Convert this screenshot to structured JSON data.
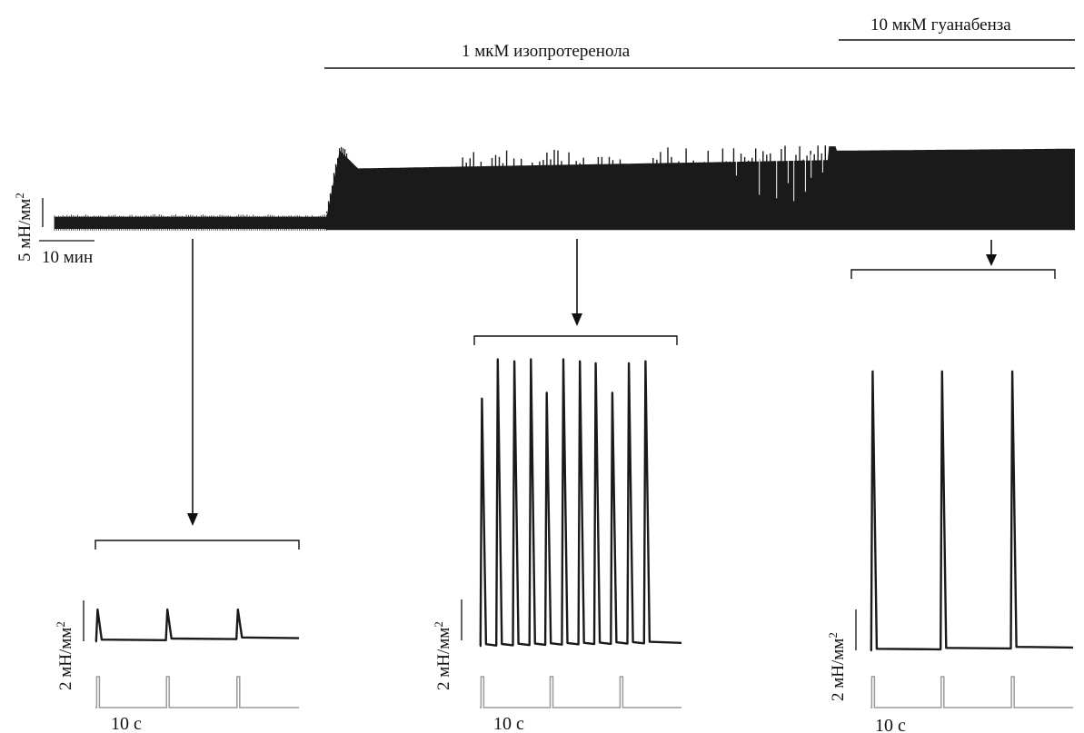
{
  "labels": {
    "drug_iso": "1 мкМ изопротеренола",
    "drug_guan": "10 мкМ гуанабенза",
    "overview_force": "5 мН/мм",
    "overview_time": "10 мин",
    "panel_force": "2 мН/мм",
    "panel_time": "10 с",
    "squared": "2"
  },
  "chart_data": {
    "type": "line",
    "overview": {
      "description_units": "force mN/mm^2 vs time min",
      "scale_bar": {
        "force": 5,
        "force_unit": "мН/мм2",
        "time": 10,
        "time_unit": "мин"
      },
      "segments": [
        {
          "phase": "baseline",
          "t_start": 0,
          "t_end": 52,
          "peak": 2.1,
          "trough": 0.0
        },
        {
          "phase": "isoproterenol",
          "label": "1 мкМ изопротеренола",
          "t_start": 52,
          "t_end": 160,
          "onset_peak": 13.5,
          "plateau_peak": 10.4,
          "late_peak": 13.0,
          "trough": -0.2
        },
        {
          "phase": "guanabenz",
          "label": "10 мкМ гуанабенза",
          "t_start": 148,
          "t_end": 195,
          "peak": 13.8,
          "trough": 0.0
        }
      ]
    },
    "panels": [
      {
        "name": "baseline",
        "duration_s": 28,
        "force_scale": 2,
        "peaks_t": [
          0.3,
          9.9,
          19.6
        ],
        "peak_heights": [
          1.55,
          1.55,
          1.55
        ],
        "baseline": 0.0,
        "stimuli_t": [
          0.3,
          9.9,
          19.6
        ]
      },
      {
        "name": "isoproterenol",
        "duration_s": 28,
        "force_scale": 2,
        "peaks_t": [
          0.3,
          2.5,
          4.8,
          7.1,
          9.3,
          11.6,
          13.9,
          16.1,
          18.4,
          20.7,
          23.0
        ],
        "peak_heights": [
          12.6,
          14.6,
          14.5,
          14.6,
          12.9,
          14.6,
          14.5,
          14.4,
          12.9,
          14.4,
          14.5
        ],
        "baseline": 0.0,
        "stimuli_t": [
          0.3,
          9.9,
          19.6
        ]
      },
      {
        "name": "guanabenz",
        "duration_s": 28,
        "force_scale": 2,
        "peaks_t": [
          0.3,
          9.9,
          19.6
        ],
        "peak_heights": [
          15.0,
          15.0,
          15.0
        ],
        "baseline": 0.0,
        "stimuli_t": [
          0.3,
          9.9,
          19.6
        ]
      }
    ]
  }
}
